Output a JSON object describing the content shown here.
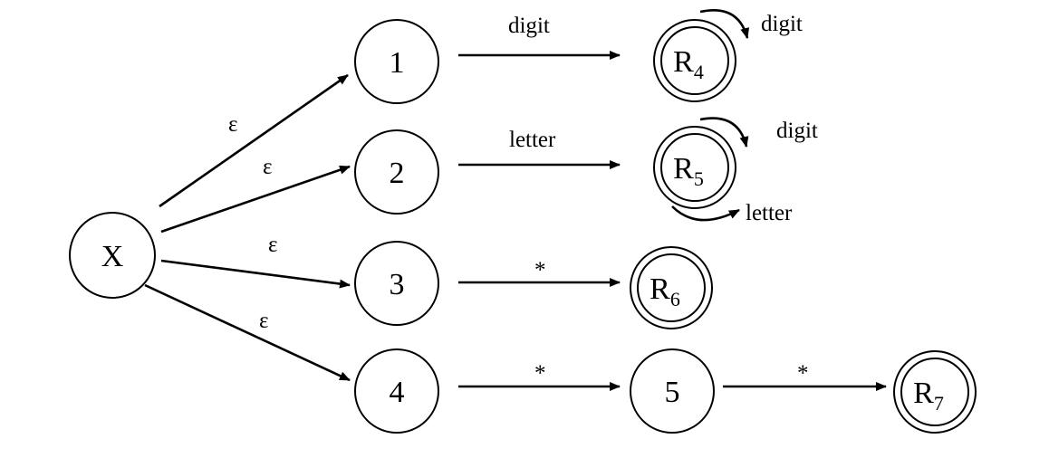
{
  "colors": {
    "stroke": "#000000",
    "background": "#ffffff"
  },
  "nodes": {
    "X": {
      "label": "X",
      "sub": "",
      "accepting": false
    },
    "n1": {
      "label": "1",
      "sub": "",
      "accepting": false
    },
    "n2": {
      "label": "2",
      "sub": "",
      "accepting": false
    },
    "n3": {
      "label": "3",
      "sub": "",
      "accepting": false
    },
    "n4": {
      "label": "4",
      "sub": "",
      "accepting": false
    },
    "n5": {
      "label": "5",
      "sub": "",
      "accepting": false
    },
    "R4": {
      "label": "R",
      "sub": "4",
      "accepting": true
    },
    "R5": {
      "label": "R",
      "sub": "5",
      "accepting": true
    },
    "R6": {
      "label": "R",
      "sub": "6",
      "accepting": true
    },
    "R7": {
      "label": "R",
      "sub": "7",
      "accepting": true
    }
  },
  "edges": {
    "x_1": {
      "from": "X",
      "to": "1",
      "label": "ε"
    },
    "x_2": {
      "from": "X",
      "to": "2",
      "label": "ε"
    },
    "x_3": {
      "from": "X",
      "to": "3",
      "label": "ε"
    },
    "x_4": {
      "from": "X",
      "to": "4",
      "label": "ε"
    },
    "e1_r4": {
      "from": "1",
      "to": "R4",
      "label": "digit"
    },
    "e2_r5": {
      "from": "2",
      "to": "R5",
      "label": "letter"
    },
    "e3_r6": {
      "from": "3",
      "to": "R6",
      "label": "*"
    },
    "e4_5": {
      "from": "4",
      "to": "5",
      "label": "*"
    },
    "e5_r7": {
      "from": "5",
      "to": "R7",
      "label": "*"
    }
  },
  "loops": {
    "r4_digit": {
      "state": "R4",
      "label": "digit"
    },
    "r5_digit": {
      "state": "R5",
      "label": "digit"
    },
    "r5_letter": {
      "state": "R5",
      "label": "letter"
    }
  }
}
